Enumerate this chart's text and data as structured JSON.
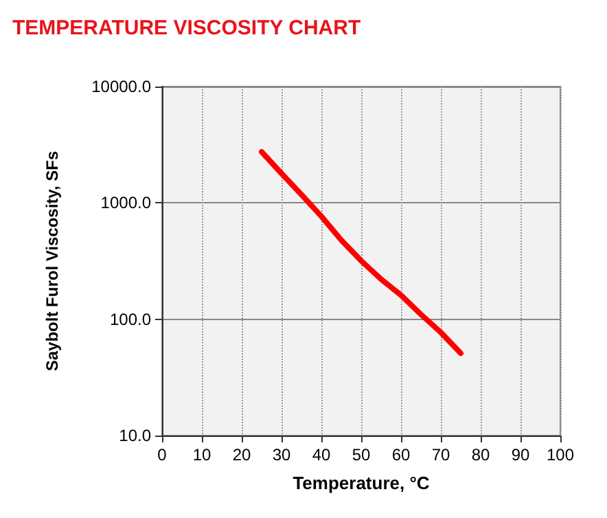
{
  "chart_data": {
    "type": "line",
    "title": "TEMPERATURE VISCOSITY CHART",
    "xlabel": "Temperature, °C",
    "ylabel": "Saybolt Furol Viscosity, SFs",
    "x": [
      25,
      30,
      35,
      40,
      45,
      50,
      55,
      60,
      65,
      70,
      75
    ],
    "series": [
      {
        "color": "#ff0000",
        "values": [
          2750,
          1790,
          1180,
          767,
          479,
          318,
          221,
          161,
          110,
          77,
          51
        ]
      }
    ],
    "log": "y",
    "xlim": [
      0,
      100
    ],
    "xticks": [
      0,
      10,
      20,
      30,
      40,
      50,
      60,
      70,
      80,
      90,
      100
    ],
    "ylim": [
      10,
      10000
    ],
    "yticks": [
      {
        "value": 10,
        "label": "10.0"
      },
      {
        "value": 100,
        "label": "100.0"
      },
      {
        "value": 1000,
        "label": "1000.0"
      },
      {
        "value": 10000,
        "label": "10000.0"
      }
    ],
    "grid": true,
    "marker": "none",
    "line_style": "solid"
  }
}
